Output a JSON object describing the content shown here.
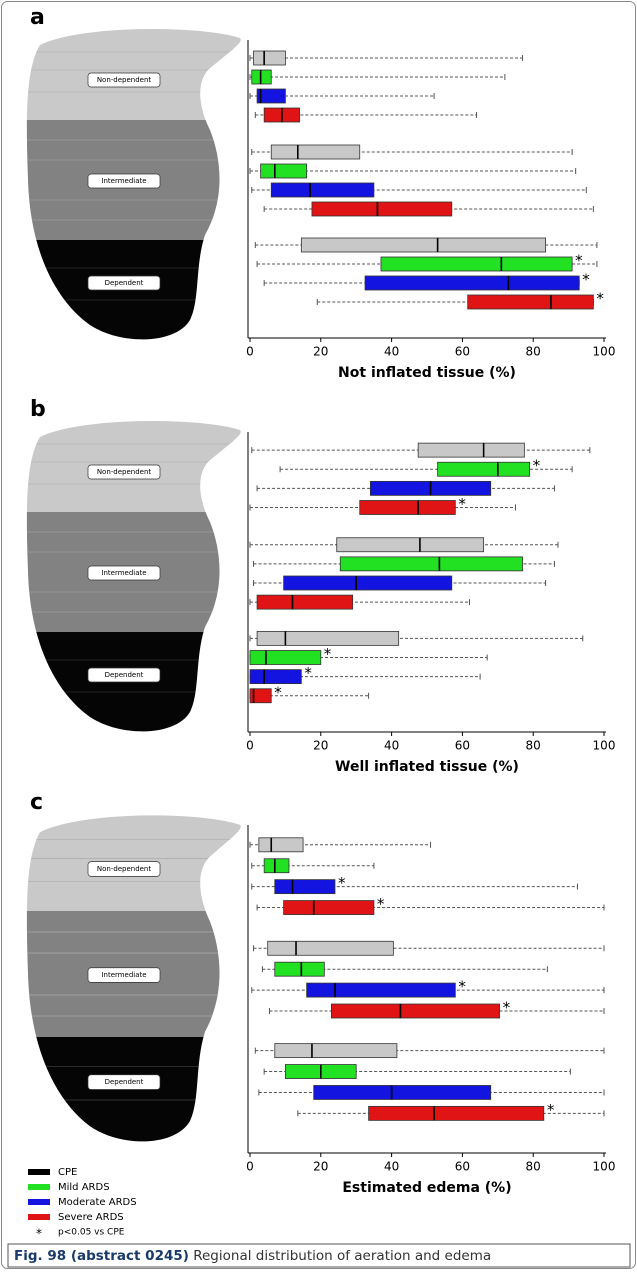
{
  "chart_data": [
    {
      "type": "box",
      "label": "a",
      "xlabel": "Not inflated tissue (%)",
      "xlim": [
        0,
        100
      ],
      "xticks": [
        0,
        20,
        40,
        60,
        80,
        100
      ],
      "regions": [
        "Non-dependent",
        "Intermediate",
        "Dependent"
      ],
      "series": [
        {
          "color": "#c8c8c8",
          "sig": [
            false,
            false,
            false
          ],
          "values": [
            {
              "min": 0,
              "q1": 1,
              "median": 4,
              "q3": 10,
              "max": 77
            },
            {
              "min": 0.5,
              "q1": 6,
              "median": 13.5,
              "q3": 31,
              "max": 91
            },
            {
              "min": 1.5,
              "q1": 14.5,
              "median": 53,
              "q3": 83.5,
              "max": 98
            }
          ]
        },
        {
          "color": "#22e022",
          "sig": [
            false,
            false,
            true
          ],
          "values": [
            {
              "min": 0,
              "q1": 0.5,
              "median": 3,
              "q3": 6,
              "max": 72
            },
            {
              "min": 0,
              "q1": 3,
              "median": 7,
              "q3": 16,
              "max": 92
            },
            {
              "min": 2,
              "q1": 37,
              "median": 71,
              "q3": 91,
              "max": 98
            }
          ]
        },
        {
          "color": "#1414e0",
          "sig": [
            false,
            false,
            true
          ],
          "values": [
            {
              "min": 0,
              "q1": 2,
              "median": 3,
              "q3": 10,
              "max": 52
            },
            {
              "min": 0.5,
              "q1": 6,
              "median": 17,
              "q3": 35,
              "max": 95
            },
            {
              "min": 4,
              "q1": 32.5,
              "median": 73,
              "q3": 93,
              "max": 93
            }
          ]
        },
        {
          "color": "#e01414",
          "sig": [
            false,
            false,
            true
          ],
          "values": [
            {
              "min": 1.5,
              "q1": 4,
              "median": 9,
              "q3": 14,
              "max": 64
            },
            {
              "min": 4,
              "q1": 17.5,
              "median": 36,
              "q3": 57,
              "max": 97
            },
            {
              "min": 19,
              "q1": 61.5,
              "median": 85,
              "q3": 97,
              "max": 97
            }
          ]
        }
      ]
    },
    {
      "type": "box",
      "label": "b",
      "xlabel": "Well inflated tissue  (%)",
      "xlim": [
        0,
        100
      ],
      "xticks": [
        0,
        20,
        40,
        60,
        80,
        100
      ],
      "regions": [
        "Non-dependent",
        "Intermediate",
        "Dependent"
      ],
      "series": [
        {
          "color": "#c8c8c8",
          "sig": [
            false,
            false,
            false
          ],
          "values": [
            {
              "min": 0.5,
              "q1": 47.5,
              "median": 66,
              "q3": 77.5,
              "max": 96
            },
            {
              "min": 0,
              "q1": 24.5,
              "median": 48,
              "q3": 66,
              "max": 87
            },
            {
              "min": 0,
              "q1": 2,
              "median": 10,
              "q3": 42,
              "max": 94
            }
          ]
        },
        {
          "color": "#22e022",
          "sig": [
            true,
            false,
            true
          ],
          "values": [
            {
              "min": 8.5,
              "q1": 53,
              "median": 70,
              "q3": 79,
              "max": 91
            },
            {
              "min": 1,
              "q1": 25.5,
              "median": 53.5,
              "q3": 77,
              "max": 86
            },
            {
              "min": 0,
              "q1": 0,
              "median": 4.5,
              "q3": 20,
              "max": 67
            }
          ]
        },
        {
          "color": "#1414e0",
          "sig": [
            false,
            false,
            true
          ],
          "values": [
            {
              "min": 2,
              "q1": 34,
              "median": 51,
              "q3": 68,
              "max": 86
            },
            {
              "min": 1,
              "q1": 9.5,
              "median": 30,
              "q3": 57,
              "max": 83.5
            },
            {
              "min": 0,
              "q1": 0,
              "median": 4,
              "q3": 14.5,
              "max": 65
            }
          ]
        },
        {
          "color": "#e01414",
          "sig": [
            true,
            false,
            true
          ],
          "values": [
            {
              "min": 0,
              "q1": 31,
              "median": 47.5,
              "q3": 58,
              "max": 75
            },
            {
              "min": 0,
              "q1": 2,
              "median": 12,
              "q3": 29,
              "max": 62
            },
            {
              "min": 0,
              "q1": 0,
              "median": 1,
              "q3": 6,
              "max": 33.5
            }
          ]
        }
      ]
    },
    {
      "type": "box",
      "label": "c",
      "xlabel": "Estimated edema (%)",
      "xlim": [
        0,
        100
      ],
      "xticks": [
        0,
        20,
        40,
        60,
        80,
        100
      ],
      "regions": [
        "Non-dependent",
        "Intermediate",
        "Dependent"
      ],
      "series": [
        {
          "color": "#c8c8c8",
          "sig": [
            false,
            false,
            false
          ],
          "values": [
            {
              "min": 0,
              "q1": 2.5,
              "median": 6,
              "q3": 15,
              "max": 51
            },
            {
              "min": 1,
              "q1": 5,
              "median": 13,
              "q3": 40.5,
              "max": 100
            },
            {
              "min": 1.5,
              "q1": 7,
              "median": 17.5,
              "q3": 41.5,
              "max": 100
            }
          ]
        },
        {
          "color": "#22e022",
          "sig": [
            false,
            false,
            false
          ],
          "values": [
            {
              "min": 0.5,
              "q1": 4,
              "median": 7,
              "q3": 11,
              "max": 35
            },
            {
              "min": 3.5,
              "q1": 7,
              "median": 14.5,
              "q3": 21,
              "max": 84
            },
            {
              "min": 4,
              "q1": 10,
              "median": 20,
              "q3": 30,
              "max": 90.5
            }
          ]
        },
        {
          "color": "#1414e0",
          "sig": [
            true,
            true,
            false
          ],
          "values": [
            {
              "min": 0.5,
              "q1": 7,
              "median": 12,
              "q3": 24,
              "max": 92.5
            },
            {
              "min": 0.5,
              "q1": 16,
              "median": 24,
              "q3": 58,
              "max": 100
            },
            {
              "min": 2.5,
              "q1": 18,
              "median": 40,
              "q3": 68,
              "max": 100
            }
          ]
        },
        {
          "color": "#e01414",
          "sig": [
            true,
            true,
            true
          ],
          "values": [
            {
              "min": 2,
              "q1": 9.5,
              "median": 18,
              "q3": 35,
              "max": 100
            },
            {
              "min": 5.5,
              "q1": 23,
              "median": 42.5,
              "q3": 70.5,
              "max": 100
            },
            {
              "min": 13.5,
              "q1": 33.5,
              "median": 52,
              "q3": 83,
              "max": 100
            }
          ]
        }
      ]
    }
  ],
  "legend": {
    "entries": [
      {
        "name": "CPE",
        "color": "#000000"
      },
      {
        "name": "Mild ARDS",
        "color": "#22e022"
      },
      {
        "name": "Moderate ARDS",
        "color": "#1414e0"
      },
      {
        "name": "Severe ARDS",
        "color": "#e01414"
      }
    ],
    "sig_marker": "*",
    "sig_label": "p<0.05 vs CPE"
  },
  "caption": {
    "label": "Fig. 98 (abstract 0245)",
    "text": " Regional distribution of aeration and edema"
  }
}
